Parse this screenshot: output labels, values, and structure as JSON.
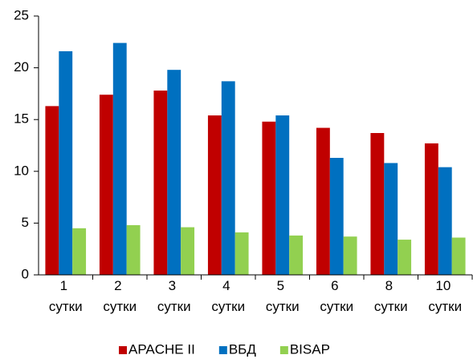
{
  "chart_data": {
    "type": "bar",
    "categories": [
      "1 сутки",
      "2 сутки",
      "3 сутки",
      "4 сутки",
      "5 сутки",
      "6 сутки",
      "8 сутки",
      "10 сутки"
    ],
    "series": [
      {
        "name": "APACHE II",
        "color": "#c00000",
        "values": [
          16.3,
          17.4,
          17.8,
          15.4,
          14.8,
          14.2,
          13.7,
          12.7
        ]
      },
      {
        "name": "ВБД",
        "color": "#0070c0",
        "values": [
          21.6,
          22.4,
          19.8,
          18.7,
          15.4,
          11.3,
          10.8,
          10.4
        ]
      },
      {
        "name": "BISAP",
        "color": "#92d050",
        "values": [
          4.5,
          4.8,
          4.6,
          4.1,
          3.8,
          3.7,
          3.4,
          3.6
        ]
      }
    ],
    "ylim": [
      0,
      25
    ],
    "yticks": [
      0,
      5,
      10,
      15,
      20,
      25
    ],
    "grid": false,
    "legend": "bottom"
  }
}
